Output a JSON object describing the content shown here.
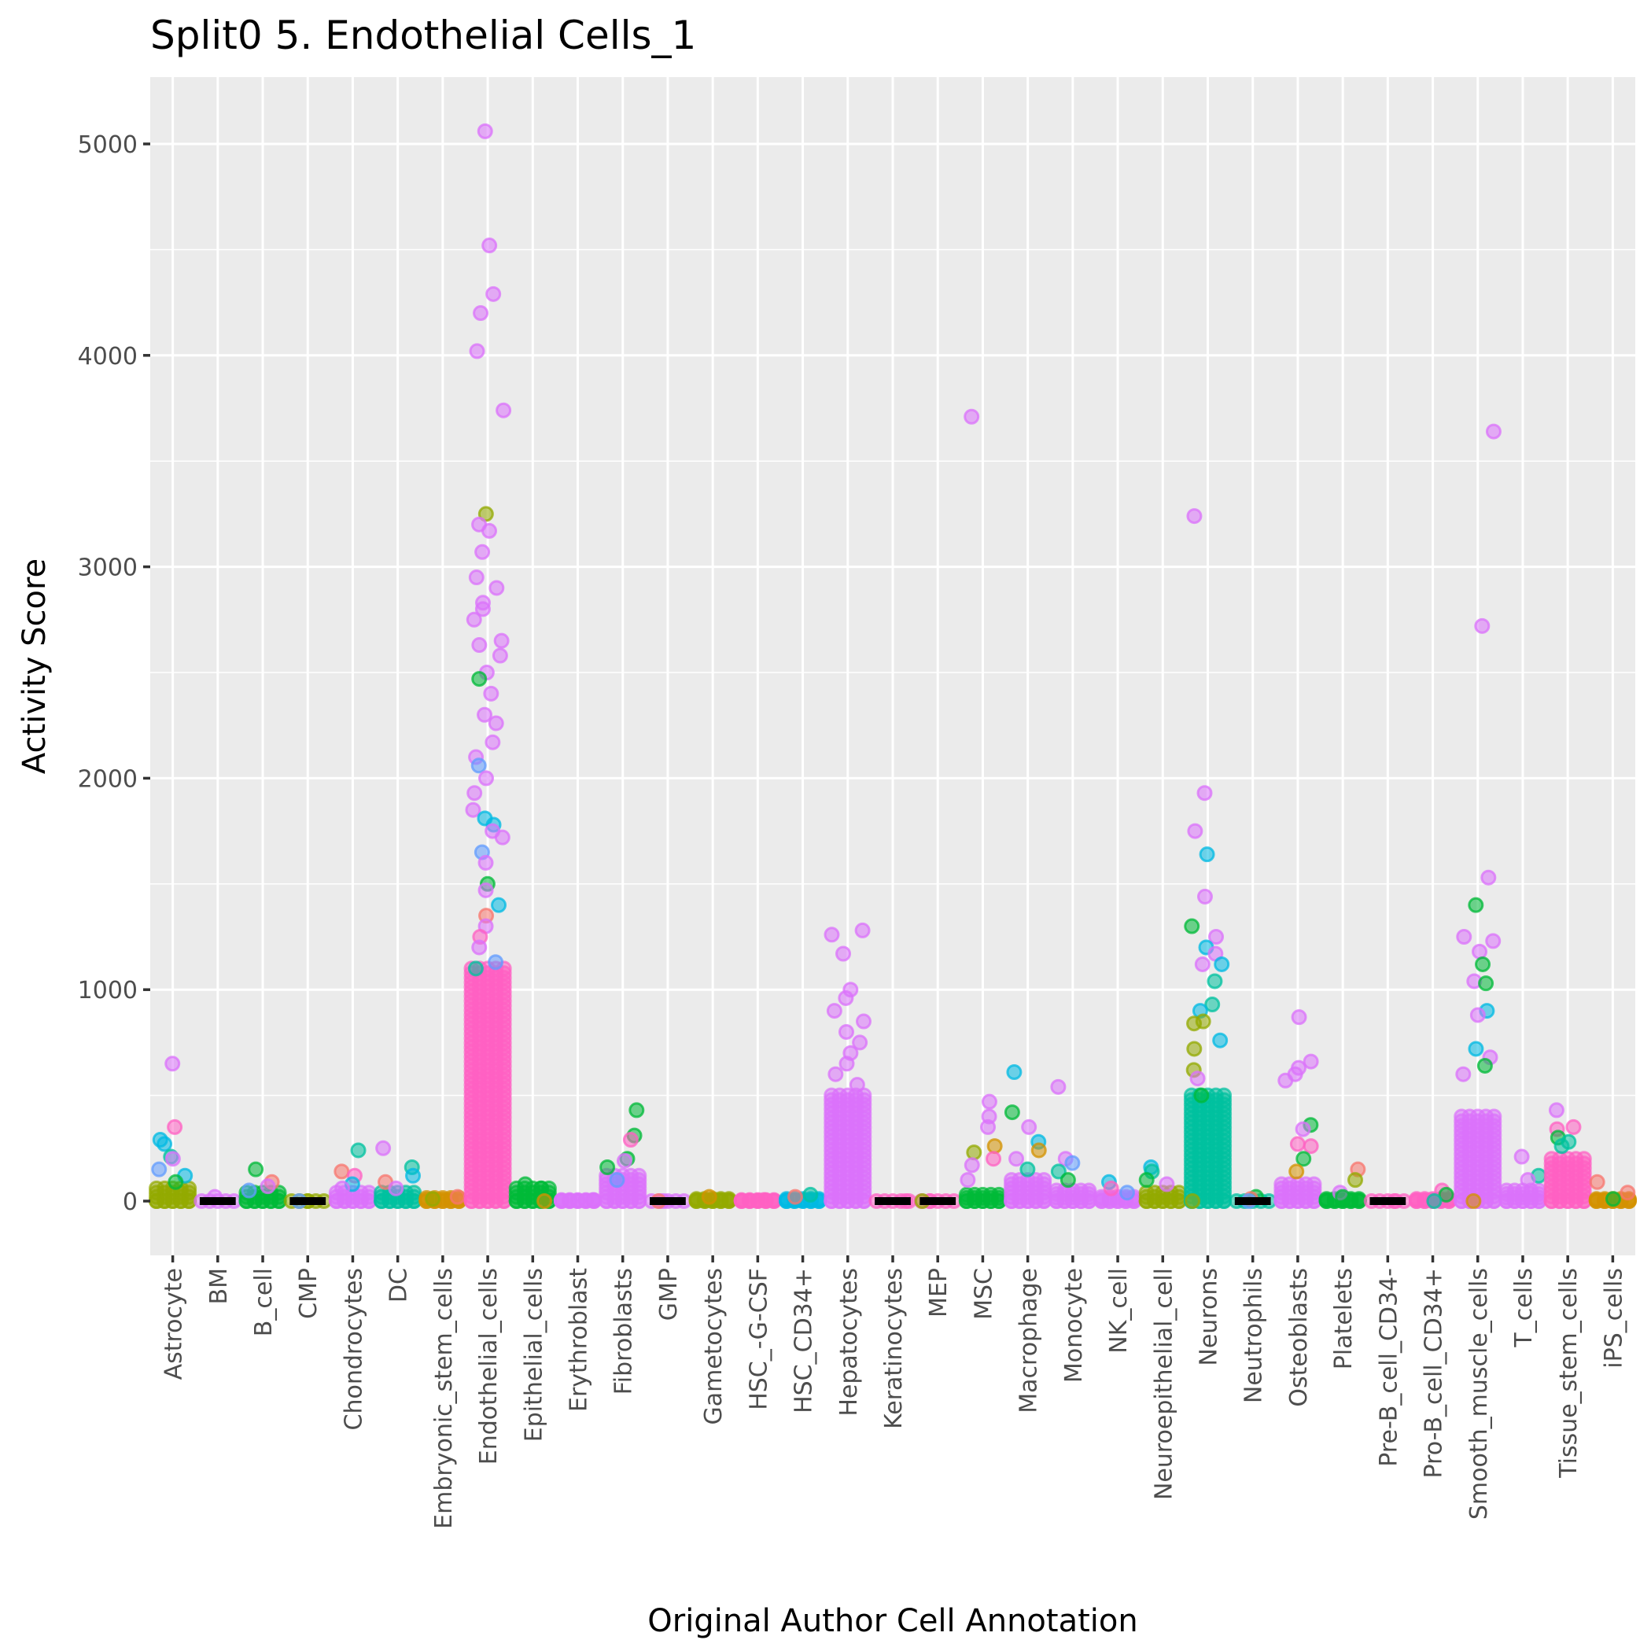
{
  "chart_data": {
    "type": "scatter",
    "subtype": "jittered strip plot",
    "title": "Split0 5. Endothelial Cells_1",
    "xlabel": "Original Author Cell Annotation",
    "ylabel": "Activity Score",
    "ylim": [
      -250,
      5300
    ],
    "yticks": [
      0,
      1000,
      2000,
      3000,
      4000,
      5000
    ],
    "ytick_labels": [
      "0",
      "1000",
      "2000",
      "3000",
      "4000",
      "5000"
    ],
    "grid": true,
    "legend": "none",
    "point_alpha": 0.55,
    "palette": [
      "#F8766D",
      "#D39200",
      "#93AA00",
      "#00BA38",
      "#00C19F",
      "#00B9E3",
      "#619CFF",
      "#DB72FB",
      "#FF61C3"
    ],
    "categories": [
      "Astrocyte",
      "BM",
      "B_cell",
      "CMP",
      "Chondrocytes",
      "DC",
      "Embryonic_stem_cells",
      "Endothelial_cells",
      "Epithelial_cells",
      "Erythroblast",
      "Fibroblasts",
      "GMP",
      "Gametocytes",
      "HSC_-G-CSF",
      "HSC_CD34+",
      "Hepatocytes",
      "Keratinocytes",
      "MEP",
      "MSC",
      "Macrophage",
      "Monocyte",
      "NK_cell",
      "Neuroepithelial_cell",
      "Neurons",
      "Neutrophils",
      "Osteoblasts",
      "Platelets",
      "Pre-B_cell_CD34-",
      "Pro-B_cell_CD34+",
      "Smooth_muscle_cells",
      "T_cells",
      "Tissue_stem_cells",
      "iPS_cells"
    ],
    "median_segments": [
      "BM",
      "CMP",
      "GMP",
      "Keratinocytes",
      "MEP",
      "Neutrophils",
      "Pre-B_cell_CD34-"
    ],
    "series": [
      {
        "category": "Astrocyte",
        "base_top": 60,
        "base_color": "#93AA00",
        "points": [
          [
            650,
            "#DB72FB"
          ],
          [
            350,
            "#FF61C3"
          ],
          [
            290,
            "#00B9E3"
          ],
          [
            270,
            "#00B9E3"
          ],
          [
            210,
            "#00C19F"
          ],
          [
            200,
            "#DB72FB"
          ],
          [
            150,
            "#619CFF"
          ],
          [
            120,
            "#00B9E3"
          ],
          [
            90,
            "#00BA38"
          ]
        ]
      },
      {
        "category": "BM",
        "base_top": 0,
        "base_color": "#DB72FB",
        "points": [
          [
            20,
            "#DB72FB"
          ]
        ]
      },
      {
        "category": "B_cell",
        "base_top": 40,
        "base_color": "#00BA38",
        "points": [
          [
            150,
            "#00BA38"
          ],
          [
            90,
            "#F8766D"
          ],
          [
            70,
            "#DB72FB"
          ],
          [
            50,
            "#619CFF"
          ]
        ]
      },
      {
        "category": "CMP",
        "base_top": 0,
        "base_color": "#93AA00",
        "points": [
          [
            0,
            "#93AA00"
          ],
          [
            0,
            "#619CFF"
          ]
        ]
      },
      {
        "category": "Chondrocytes",
        "base_top": 40,
        "base_color": "#DB72FB",
        "points": [
          [
            240,
            "#00C19F"
          ],
          [
            140,
            "#F8766D"
          ],
          [
            120,
            "#FF61C3"
          ],
          [
            80,
            "#00B9E3"
          ],
          [
            60,
            "#DB72FB"
          ]
        ]
      },
      {
        "category": "DC",
        "base_top": 40,
        "base_color": "#00C19F",
        "points": [
          [
            250,
            "#DB72FB"
          ],
          [
            160,
            "#00C19F"
          ],
          [
            120,
            "#00B9E3"
          ],
          [
            90,
            "#F8766D"
          ],
          [
            60,
            "#DB72FB"
          ]
        ]
      },
      {
        "category": "Embryonic_stem_cells",
        "base_top": 15,
        "base_color": "#D39200",
        "points": [
          [
            20,
            "#F8766D"
          ],
          [
            10,
            "#93AA00"
          ]
        ]
      },
      {
        "category": "Endothelial_cells",
        "base_top": 1100,
        "base_color": "#FF61C3",
        "points": [
          [
            5060,
            "#DB72FB"
          ],
          [
            4520,
            "#DB72FB"
          ],
          [
            4290,
            "#DB72FB"
          ],
          [
            4200,
            "#DB72FB"
          ],
          [
            4020,
            "#DB72FB"
          ],
          [
            3740,
            "#DB72FB"
          ],
          [
            3250,
            "#93AA00"
          ],
          [
            3200,
            "#DB72FB"
          ],
          [
            3170,
            "#DB72FB"
          ],
          [
            3070,
            "#DB72FB"
          ],
          [
            2950,
            "#DB72FB"
          ],
          [
            2900,
            "#DB72FB"
          ],
          [
            2830,
            "#DB72FB"
          ],
          [
            2800,
            "#DB72FB"
          ],
          [
            2750,
            "#DB72FB"
          ],
          [
            2650,
            "#DB72FB"
          ],
          [
            2630,
            "#DB72FB"
          ],
          [
            2580,
            "#DB72FB"
          ],
          [
            2500,
            "#DB72FB"
          ],
          [
            2470,
            "#00BA38"
          ],
          [
            2400,
            "#DB72FB"
          ],
          [
            2300,
            "#DB72FB"
          ],
          [
            2260,
            "#DB72FB"
          ],
          [
            2170,
            "#DB72FB"
          ],
          [
            2100,
            "#DB72FB"
          ],
          [
            2060,
            "#619CFF"
          ],
          [
            2000,
            "#DB72FB"
          ],
          [
            1930,
            "#DB72FB"
          ],
          [
            1850,
            "#DB72FB"
          ],
          [
            1810,
            "#00B9E3"
          ],
          [
            1780,
            "#00B9E3"
          ],
          [
            1750,
            "#DB72FB"
          ],
          [
            1720,
            "#DB72FB"
          ],
          [
            1650,
            "#619CFF"
          ],
          [
            1600,
            "#DB72FB"
          ],
          [
            1500,
            "#00BA38"
          ],
          [
            1470,
            "#DB72FB"
          ],
          [
            1400,
            "#00B9E3"
          ],
          [
            1350,
            "#F8766D"
          ],
          [
            1300,
            "#DB72FB"
          ],
          [
            1250,
            "#FF61C3"
          ],
          [
            1200,
            "#DB72FB"
          ],
          [
            1130,
            "#619CFF"
          ],
          [
            1100,
            "#00C19F"
          ]
        ]
      },
      {
        "category": "Epithelial_cells",
        "base_top": 60,
        "base_color": "#00BA38",
        "points": [
          [
            80,
            "#00BA38"
          ],
          [
            60,
            "#00BA38"
          ],
          [
            0,
            "#D39200"
          ]
        ]
      },
      {
        "category": "Erythroblast",
        "base_top": 5,
        "base_color": "#DB72FB",
        "points": [
          [
            5,
            "#DB72FB"
          ]
        ]
      },
      {
        "category": "Fibroblasts",
        "base_top": 120,
        "base_color": "#DB72FB",
        "points": [
          [
            430,
            "#00BA38"
          ],
          [
            310,
            "#00BA38"
          ],
          [
            290,
            "#FF61C3"
          ],
          [
            200,
            "#00BA38"
          ],
          [
            190,
            "#DB72FB"
          ],
          [
            160,
            "#00BA38"
          ],
          [
            100,
            "#619CFF"
          ]
        ]
      },
      {
        "category": "GMP",
        "base_top": 0,
        "base_color": "#DB72FB",
        "points": [
          [
            0,
            "#DB72FB"
          ],
          [
            0,
            "#F8766D"
          ]
        ]
      },
      {
        "category": "Gametocytes",
        "base_top": 10,
        "base_color": "#93AA00",
        "points": [
          [
            20,
            "#D39200"
          ]
        ]
      },
      {
        "category": "HSC_-G-CSF",
        "base_top": 5,
        "base_color": "#FF61C3",
        "points": [
          [
            5,
            "#FF61C3"
          ]
        ]
      },
      {
        "category": "HSC_CD34+",
        "base_top": 10,
        "base_color": "#00B9E3",
        "points": [
          [
            30,
            "#00C19F"
          ],
          [
            20,
            "#F8766D"
          ]
        ]
      },
      {
        "category": "Hepatocytes",
        "base_top": 500,
        "base_color": "#DB72FB",
        "points": [
          [
            1280,
            "#DB72FB"
          ],
          [
            1260,
            "#DB72FB"
          ],
          [
            1170,
            "#DB72FB"
          ],
          [
            1000,
            "#DB72FB"
          ],
          [
            960,
            "#DB72FB"
          ],
          [
            900,
            "#DB72FB"
          ],
          [
            850,
            "#DB72FB"
          ],
          [
            800,
            "#DB72FB"
          ],
          [
            750,
            "#DB72FB"
          ],
          [
            700,
            "#DB72FB"
          ],
          [
            650,
            "#DB72FB"
          ],
          [
            600,
            "#DB72FB"
          ],
          [
            550,
            "#DB72FB"
          ]
        ]
      },
      {
        "category": "Keratinocytes",
        "base_top": 0,
        "base_color": "#FF61C3",
        "points": [
          [
            0,
            "#FF61C3"
          ]
        ]
      },
      {
        "category": "MEP",
        "base_top": 0,
        "base_color": "#FF61C3",
        "points": [
          [
            0,
            "#FF61C3"
          ],
          [
            0,
            "#93AA00"
          ]
        ]
      },
      {
        "category": "MSC",
        "base_top": 30,
        "base_color": "#00BA38",
        "points": [
          [
            3710,
            "#DB72FB"
          ],
          [
            470,
            "#DB72FB"
          ],
          [
            400,
            "#DB72FB"
          ],
          [
            350,
            "#DB72FB"
          ],
          [
            260,
            "#D39200"
          ],
          [
            230,
            "#93AA00"
          ],
          [
            200,
            "#FF61C3"
          ],
          [
            170,
            "#DB72FB"
          ],
          [
            100,
            "#DB72FB"
          ]
        ]
      },
      {
        "category": "Macrophage",
        "base_top": 100,
        "base_color": "#DB72FB",
        "points": [
          [
            610,
            "#00B9E3"
          ],
          [
            420,
            "#00BA38"
          ],
          [
            350,
            "#DB72FB"
          ],
          [
            280,
            "#00B9E3"
          ],
          [
            240,
            "#D39200"
          ],
          [
            200,
            "#DB72FB"
          ],
          [
            150,
            "#00C19F"
          ]
        ]
      },
      {
        "category": "Monocyte",
        "base_top": 50,
        "base_color": "#DB72FB",
        "points": [
          [
            540,
            "#DB72FB"
          ],
          [
            200,
            "#DB72FB"
          ],
          [
            180,
            "#619CFF"
          ],
          [
            140,
            "#00C19F"
          ],
          [
            100,
            "#00BA38"
          ]
        ]
      },
      {
        "category": "NK_cell",
        "base_top": 20,
        "base_color": "#DB72FB",
        "points": [
          [
            90,
            "#00B9E3"
          ],
          [
            60,
            "#FF61C3"
          ],
          [
            40,
            "#619CFF"
          ]
        ]
      },
      {
        "category": "Neuroepithelial_cell",
        "base_top": 40,
        "base_color": "#93AA00",
        "points": [
          [
            160,
            "#00B9E3"
          ],
          [
            140,
            "#00C19F"
          ],
          [
            100,
            "#00BA38"
          ],
          [
            80,
            "#DB72FB"
          ]
        ]
      },
      {
        "category": "Neurons",
        "base_top": 500,
        "base_color": "#00C19F",
        "points": [
          [
            3240,
            "#DB72FB"
          ],
          [
            1930,
            "#DB72FB"
          ],
          [
            1750,
            "#DB72FB"
          ],
          [
            1640,
            "#00B9E3"
          ],
          [
            1440,
            "#DB72FB"
          ],
          [
            1300,
            "#00BA38"
          ],
          [
            1250,
            "#DB72FB"
          ],
          [
            1200,
            "#00B9E3"
          ],
          [
            1170,
            "#DB72FB"
          ],
          [
            1120,
            "#DB72FB"
          ],
          [
            1120,
            "#00B9E3"
          ],
          [
            1040,
            "#00C19F"
          ],
          [
            930,
            "#00C19F"
          ],
          [
            900,
            "#00B9E3"
          ],
          [
            850,
            "#93AA00"
          ],
          [
            840,
            "#93AA00"
          ],
          [
            760,
            "#00B9E3"
          ],
          [
            720,
            "#93AA00"
          ],
          [
            620,
            "#93AA00"
          ],
          [
            580,
            "#DB72FB"
          ],
          [
            500,
            "#00BA38"
          ],
          [
            0,
            "#93AA00"
          ]
        ]
      },
      {
        "category": "Neutrophils",
        "base_top": 0,
        "base_color": "#00C19F",
        "points": [
          [
            20,
            "#00BA38"
          ],
          [
            10,
            "#F8766D"
          ],
          [
            0,
            "#619CFF"
          ]
        ]
      },
      {
        "category": "Osteoblasts",
        "base_top": 80,
        "base_color": "#DB72FB",
        "points": [
          [
            870,
            "#DB72FB"
          ],
          [
            660,
            "#DB72FB"
          ],
          [
            630,
            "#DB72FB"
          ],
          [
            600,
            "#DB72FB"
          ],
          [
            570,
            "#DB72FB"
          ],
          [
            360,
            "#00BA38"
          ],
          [
            340,
            "#DB72FB"
          ],
          [
            270,
            "#FF61C3"
          ],
          [
            260,
            "#FF61C3"
          ],
          [
            200,
            "#00BA38"
          ],
          [
            140,
            "#D39200"
          ]
        ]
      },
      {
        "category": "Platelets",
        "base_top": 10,
        "base_color": "#00BA38",
        "points": [
          [
            150,
            "#F8766D"
          ],
          [
            100,
            "#93AA00"
          ],
          [
            40,
            "#DB72FB"
          ],
          [
            20,
            "#00BA38"
          ]
        ]
      },
      {
        "category": "Pre-B_cell_CD34-",
        "base_top": 0,
        "base_color": "#FF61C3",
        "points": [
          [
            0,
            "#FF61C3"
          ]
        ]
      },
      {
        "category": "Pro-B_cell_CD34+",
        "base_top": 10,
        "base_color": "#FF61C3",
        "points": [
          [
            50,
            "#FF61C3"
          ],
          [
            30,
            "#00BA38"
          ],
          [
            0,
            "#00C19F"
          ]
        ]
      },
      {
        "category": "Smooth_muscle_cells",
        "base_top": 400,
        "base_color": "#DB72FB",
        "points": [
          [
            3640,
            "#DB72FB"
          ],
          [
            2720,
            "#DB72FB"
          ],
          [
            1530,
            "#DB72FB"
          ],
          [
            1400,
            "#00BA38"
          ],
          [
            1250,
            "#DB72FB"
          ],
          [
            1230,
            "#DB72FB"
          ],
          [
            1180,
            "#DB72FB"
          ],
          [
            1120,
            "#00BA38"
          ],
          [
            1040,
            "#DB72FB"
          ],
          [
            1030,
            "#00BA38"
          ],
          [
            900,
            "#00B9E3"
          ],
          [
            880,
            "#DB72FB"
          ],
          [
            720,
            "#00B9E3"
          ],
          [
            680,
            "#DB72FB"
          ],
          [
            640,
            "#00BA38"
          ],
          [
            600,
            "#DB72FB"
          ],
          [
            0,
            "#D39200"
          ]
        ]
      },
      {
        "category": "T_cells",
        "base_top": 50,
        "base_color": "#DB72FB",
        "points": [
          [
            210,
            "#DB72FB"
          ],
          [
            120,
            "#00C19F"
          ],
          [
            100,
            "#DB72FB"
          ]
        ]
      },
      {
        "category": "Tissue_stem_cells",
        "base_top": 200,
        "base_color": "#FF61C3",
        "points": [
          [
            430,
            "#DB72FB"
          ],
          [
            350,
            "#FF61C3"
          ],
          [
            340,
            "#FF61C3"
          ],
          [
            300,
            "#00BA38"
          ],
          [
            280,
            "#00C19F"
          ],
          [
            260,
            "#00C19F"
          ]
        ]
      },
      {
        "category": "iPS_cells",
        "base_top": 10,
        "base_color": "#D39200",
        "points": [
          [
            90,
            "#F8766D"
          ],
          [
            40,
            "#F8766D"
          ],
          [
            10,
            "#00BA38"
          ]
        ]
      }
    ]
  }
}
